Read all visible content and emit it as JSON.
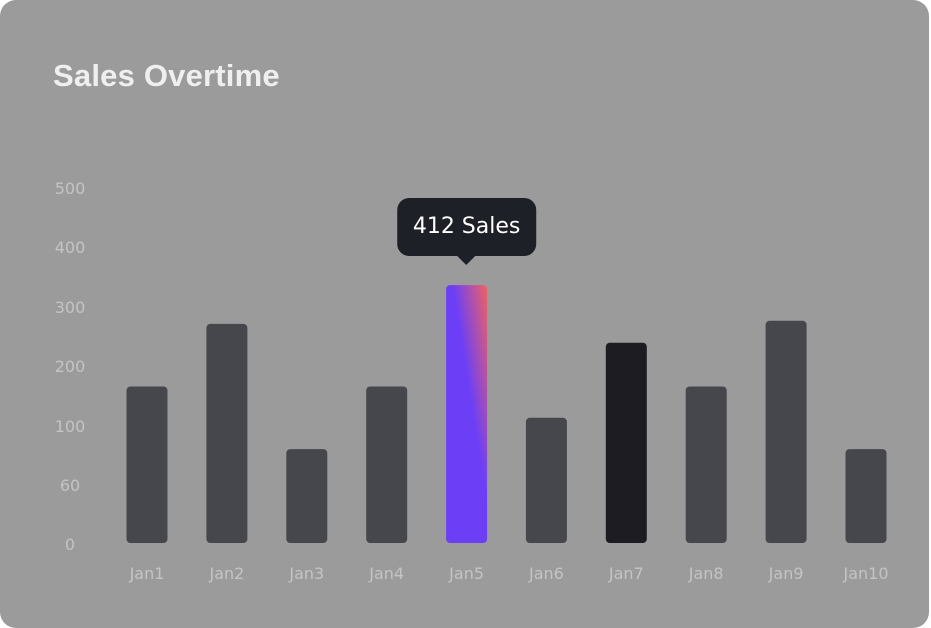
{
  "card": {
    "title": "Sales Overtime"
  },
  "tooltip": {
    "text": "412 Sales",
    "category": "Jan5"
  },
  "colors": {
    "background": "#9b9b9b",
    "bar": "#46474c",
    "bar_dark": "#1c1c22",
    "highlight_gradient_start": "#6c3ff7",
    "highlight_gradient_end": "#f06262",
    "tooltip_bg": "#1e2028",
    "axis_text": "#c4c4c4"
  },
  "chart_data": {
    "type": "bar",
    "title": "Sales Overtime",
    "xlabel": "",
    "ylabel": "",
    "categories": [
      "Jan1",
      "Jan2",
      "Jan3",
      "Jan4",
      "Jan5",
      "Jan6",
      "Jan7",
      "Jan8",
      "Jan9",
      "Jan10"
    ],
    "values": [
      250,
      350,
      150,
      250,
      412,
      200,
      320,
      250,
      355,
      150
    ],
    "highlighted_category": "Jan5",
    "dark_category": "Jan7",
    "y_ticks": [
      "0",
      "60",
      "100",
      "200",
      "300",
      "400",
      "500"
    ],
    "ylim": [
      0,
      500
    ],
    "grid": false,
    "legend": "none"
  }
}
